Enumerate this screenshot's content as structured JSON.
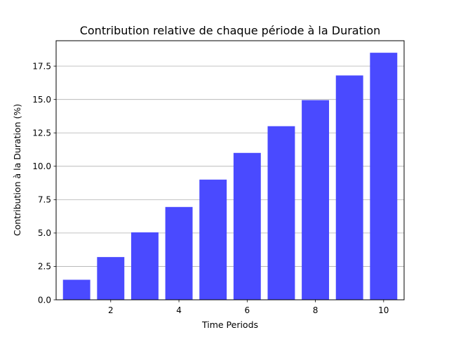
{
  "chart_data": {
    "type": "bar",
    "title": "Contribution relative de chaque période à la Duration",
    "xlabel": "Time Periods",
    "ylabel": "Contribution à la Duration (%)",
    "x": [
      1,
      2,
      3,
      4,
      5,
      6,
      7,
      8,
      9,
      10
    ],
    "values": [
      1.5,
      3.2,
      5.05,
      6.95,
      9.0,
      11.0,
      13.0,
      14.95,
      16.8,
      18.5
    ],
    "xlim": [
      0.4,
      10.6
    ],
    "ylim": [
      0,
      19.4
    ],
    "xticks": [
      2,
      4,
      6,
      8,
      10
    ],
    "xtick_labels": [
      "2",
      "4",
      "6",
      "8",
      "10"
    ],
    "yticks": [
      0,
      2.5,
      5,
      7.5,
      10,
      12.5,
      15,
      17.5
    ],
    "ytick_labels": [
      "0.0",
      "2.5",
      "5.0",
      "7.5",
      "10.0",
      "12.5",
      "15.0",
      "17.5"
    ],
    "grid": "y",
    "legend": "none",
    "bar_width": 0.8,
    "bar_color": "#4a4aff"
  }
}
